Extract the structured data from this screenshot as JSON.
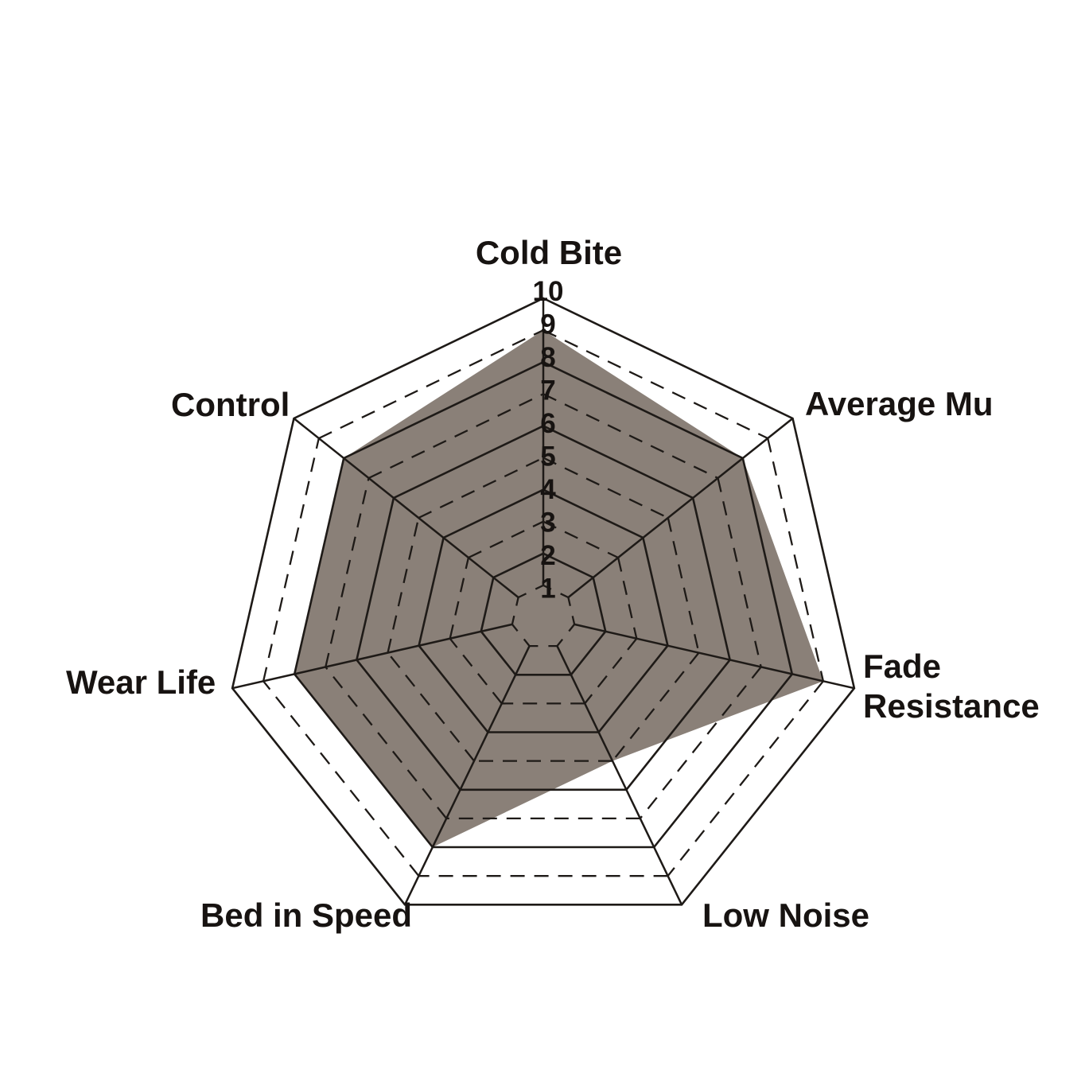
{
  "chart_data": {
    "type": "radar",
    "categories": [
      "Cold Bite",
      "Average Mu",
      "Fade Resistance",
      "Low Noise",
      "Bed in Speed",
      "Wear Life",
      "Control"
    ],
    "values": [
      9,
      8,
      9,
      5,
      8,
      8,
      8
    ],
    "scale": {
      "min": 1,
      "max": 10,
      "tick_labels": [
        "1",
        "2",
        "3",
        "4",
        "5",
        "6",
        "7",
        "8",
        "9",
        "10"
      ]
    },
    "grid": {
      "rings": 10,
      "solid_rings": [
        2,
        4,
        6,
        8,
        10
      ],
      "dashed_rings": [
        1,
        3,
        5,
        7,
        9
      ],
      "spokes": 7
    },
    "legend_position": "none",
    "title": ""
  },
  "colors": {
    "background": "#ffffff",
    "fill": "#8a8078",
    "line": "#1e1a17",
    "text": "#171311"
  }
}
